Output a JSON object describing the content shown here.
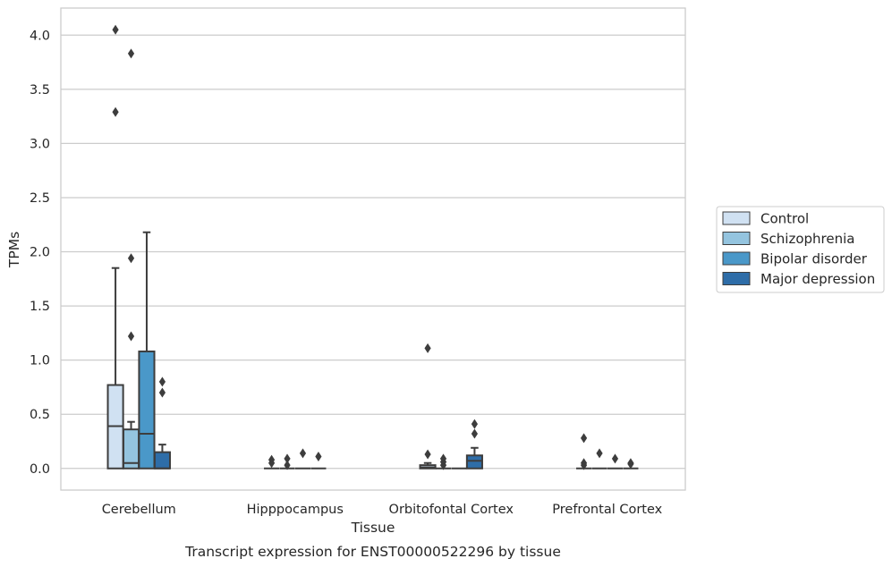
{
  "chart_data": {
    "type": "box",
    "title": "",
    "xlabel": "Tissue",
    "ylabel": "TPMs",
    "caption": "Transcript expression for ENST00000522296 by tissue",
    "ylim": [
      -0.2,
      4.25
    ],
    "yticks": [
      "0.0",
      "0.5",
      "1.0",
      "1.5",
      "2.0",
      "2.5",
      "3.0",
      "3.5",
      "4.0"
    ],
    "grid": true,
    "legend_position": "right",
    "categories": [
      "Cerebellum",
      "Hipppocampus",
      "Orbitofontal Cortex",
      "Prefrontal Cortex"
    ],
    "series": [
      {
        "name": "Control",
        "color": "#d0e1f2",
        "boxes": [
          {
            "q1": 0.0,
            "median": 0.39,
            "q3": 0.77,
            "whisker_low": 0.0,
            "whisker_high": 1.85,
            "outliers": [
              4.05,
              3.29
            ]
          },
          {
            "q1": 0.0,
            "median": 0.0,
            "q3": 0.0,
            "whisker_low": 0.0,
            "whisker_high": 0.0,
            "outliers": [
              0.08,
              0.05
            ]
          },
          {
            "q1": 0.0,
            "median": 0.01,
            "q3": 0.03,
            "whisker_low": 0.0,
            "whisker_high": 0.05,
            "outliers": [
              1.11,
              0.13
            ]
          },
          {
            "q1": 0.0,
            "median": 0.0,
            "q3": 0.0,
            "whisker_low": 0.0,
            "whisker_high": 0.0,
            "outliers": [
              0.28,
              0.05,
              0.03
            ]
          }
        ]
      },
      {
        "name": "Schizophrenia",
        "color": "#94c4df",
        "boxes": [
          {
            "q1": 0.0,
            "median": 0.05,
            "q3": 0.36,
            "whisker_low": 0.0,
            "whisker_high": 0.43,
            "outliers": [
              3.83,
              1.94,
              1.22
            ]
          },
          {
            "q1": 0.0,
            "median": 0.0,
            "q3": 0.0,
            "whisker_low": 0.0,
            "whisker_high": 0.0,
            "outliers": [
              0.09,
              0.03
            ]
          },
          {
            "q1": 0.0,
            "median": 0.0,
            "q3": 0.0,
            "whisker_low": 0.0,
            "whisker_high": 0.0,
            "outliers": [
              0.09,
              0.06,
              0.03
            ]
          },
          {
            "q1": 0.0,
            "median": 0.0,
            "q3": 0.0,
            "whisker_low": 0.0,
            "whisker_high": 0.0,
            "outliers": [
              0.14
            ]
          }
        ]
      },
      {
        "name": "Bipolar disorder",
        "color": "#4a98c9",
        "boxes": [
          {
            "q1": 0.0,
            "median": 0.32,
            "q3": 1.08,
            "whisker_low": 0.0,
            "whisker_high": 2.18,
            "outliers": []
          },
          {
            "q1": 0.0,
            "median": 0.0,
            "q3": 0.0,
            "whisker_low": 0.0,
            "whisker_high": 0.0,
            "outliers": [
              0.14
            ]
          },
          {
            "q1": 0.0,
            "median": 0.0,
            "q3": 0.0,
            "whisker_low": 0.0,
            "whisker_high": 0.0,
            "outliers": []
          },
          {
            "q1": 0.0,
            "median": 0.0,
            "q3": 0.0,
            "whisker_low": 0.0,
            "whisker_high": 0.0,
            "outliers": [
              0.09
            ]
          }
        ]
      },
      {
        "name": "Major depression",
        "color": "#2e6da8",
        "boxes": [
          {
            "q1": 0.0,
            "median": 0.0,
            "q3": 0.15,
            "whisker_low": 0.0,
            "whisker_high": 0.22,
            "outliers": [
              0.8,
              0.7
            ]
          },
          {
            "q1": 0.0,
            "median": 0.0,
            "q3": 0.0,
            "whisker_low": 0.0,
            "whisker_high": 0.0,
            "outliers": [
              0.11
            ]
          },
          {
            "q1": 0.0,
            "median": 0.07,
            "q3": 0.12,
            "whisker_low": 0.0,
            "whisker_high": 0.19,
            "outliers": [
              0.41,
              0.32
            ]
          },
          {
            "q1": 0.0,
            "median": 0.0,
            "q3": 0.0,
            "whisker_low": 0.0,
            "whisker_high": 0.0,
            "outliers": [
              0.05,
              0.04
            ]
          }
        ]
      }
    ]
  }
}
